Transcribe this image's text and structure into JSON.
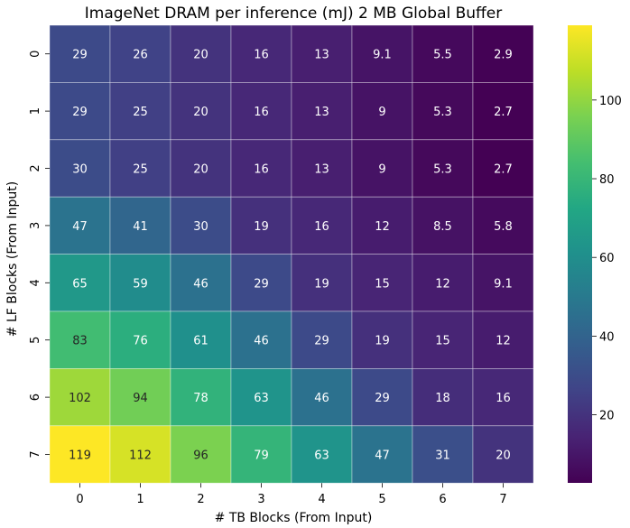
{
  "chart_data": {
    "type": "heatmap",
    "title": "ImageNet DRAM per inference (mJ) 2 MB Global Buffer",
    "xlabel": "# TB Blocks (From Input)",
    "ylabel": "# LF Blocks (From Input)",
    "x_categories": [
      "0",
      "1",
      "2",
      "3",
      "4",
      "5",
      "6",
      "7"
    ],
    "y_categories": [
      "0",
      "1",
      "2",
      "3",
      "4",
      "5",
      "6",
      "7"
    ],
    "values": [
      [
        29,
        26,
        20,
        16,
        13,
        9.1,
        5.5,
        2.9
      ],
      [
        29,
        25,
        20,
        16,
        13,
        9,
        5.3,
        2.7
      ],
      [
        30,
        25,
        20,
        16,
        13,
        9,
        5.3,
        2.7
      ],
      [
        47,
        41,
        30,
        19,
        16,
        12,
        8.5,
        5.8
      ],
      [
        65,
        59,
        46,
        29,
        19,
        15,
        12,
        9.1
      ],
      [
        83,
        76,
        61,
        46,
        29,
        19,
        15,
        12
      ],
      [
        102,
        94,
        78,
        63,
        46,
        29,
        18,
        16
      ],
      [
        119,
        112,
        96,
        79,
        63,
        47,
        31,
        20
      ]
    ],
    "colormap": "viridis",
    "vmin": 2.7,
    "vmax": 119,
    "colorbar_ticks": [
      "20",
      "40",
      "60",
      "80",
      "100"
    ],
    "grid": true,
    "annotations": true
  }
}
